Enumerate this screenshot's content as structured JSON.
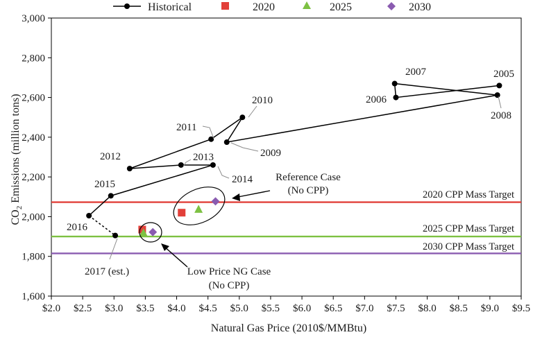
{
  "chart_data": {
    "type": "scatter",
    "xlabel": "Natural Gas Price (2010$/MMBtu)",
    "ylabel_main": "CO",
    "ylabel_sub": "2",
    "ylabel_rest": " Emissions (million tons)",
    "xlim": [
      2.0,
      9.5
    ],
    "ylim": [
      1600,
      3000
    ],
    "x_ticks": [
      2.0,
      2.5,
      3.0,
      3.5,
      4.0,
      4.5,
      5.0,
      5.5,
      6.0,
      6.5,
      7.0,
      7.5,
      8.0,
      8.5,
      9.0,
      9.5
    ],
    "x_tick_labels": [
      "$2.0",
      "$2.5",
      "$3.0",
      "$3.5",
      "$4.0",
      "$4.5",
      "$5.0",
      "$5.5",
      "$6.0",
      "$6.5",
      "$7.0",
      "$7.5",
      "$8.0",
      "$8.5",
      "$9.0",
      "$9.5"
    ],
    "y_ticks": [
      1600,
      1800,
      2000,
      2200,
      2400,
      2600,
      2800,
      3000
    ],
    "y_tick_labels": [
      "1,600",
      "1,800",
      "2,000",
      "2,200",
      "2,400",
      "2,600",
      "2,800",
      "3,000"
    ],
    "grid": false,
    "legend_position": "top",
    "legend": [
      {
        "label": "Historical",
        "marker": "circle-line",
        "color": "#000000"
      },
      {
        "label": "2020",
        "marker": "square",
        "color": "#e2403a"
      },
      {
        "label": "2025",
        "marker": "triangle",
        "color": "#7dc142"
      },
      {
        "label": "2030",
        "marker": "diamond",
        "color": "#8a5bb0"
      }
    ],
    "historical": [
      {
        "year": "2005",
        "x": 9.15,
        "y": 2660
      },
      {
        "year": "2006",
        "x": 7.5,
        "y": 2600
      },
      {
        "year": "2007",
        "x": 7.48,
        "y": 2670
      },
      {
        "year": "2008",
        "x": 9.12,
        "y": 2612
      },
      {
        "year": "2009",
        "x": 4.8,
        "y": 2375
      },
      {
        "year": "2010",
        "x": 5.05,
        "y": 2500
      },
      {
        "year": "2011",
        "x": 4.55,
        "y": 2390
      },
      {
        "year": "2012",
        "x": 3.25,
        "y": 2242
      },
      {
        "year": "2013",
        "x": 4.07,
        "y": 2260
      },
      {
        "year": "2014",
        "x": 4.58,
        "y": 2260
      },
      {
        "year": "2015",
        "x": 2.95,
        "y": 2105
      },
      {
        "year": "2016",
        "x": 2.6,
        "y": 2005
      }
    ],
    "estimate": {
      "year": "2017 (est.)",
      "x": 3.02,
      "y": 1905
    },
    "scenarios": [
      {
        "series": "2020",
        "case": "Reference Case",
        "x": 4.08,
        "y": 2020
      },
      {
        "series": "2025",
        "case": "Reference Case",
        "x": 4.35,
        "y": 2037
      },
      {
        "series": "2030",
        "case": "Reference Case",
        "x": 4.62,
        "y": 2077
      },
      {
        "series": "2020",
        "case": "Low Price NG Case",
        "x": 3.45,
        "y": 1935
      },
      {
        "series": "2025",
        "case": "Low Price NG Case",
        "x": 3.47,
        "y": 1918
      },
      {
        "series": "2030",
        "case": "Low Price NG Case",
        "x": 3.62,
        "y": 1922
      }
    ],
    "targets": [
      {
        "label": "2020 CPP Mass Target",
        "y": 2073,
        "color": "#e2403a"
      },
      {
        "label": "2025 CPP Mass Target",
        "y": 1900,
        "color": "#7dc142"
      },
      {
        "label": "2030 CPP Mass Target",
        "y": 1815,
        "color": "#8a5bb0"
      }
    ],
    "annotations": [
      {
        "line1": "Reference Case",
        "line2": "(No CPP)"
      },
      {
        "line1": "Low Price NG Case",
        "line2": "(No CPP)"
      }
    ]
  }
}
